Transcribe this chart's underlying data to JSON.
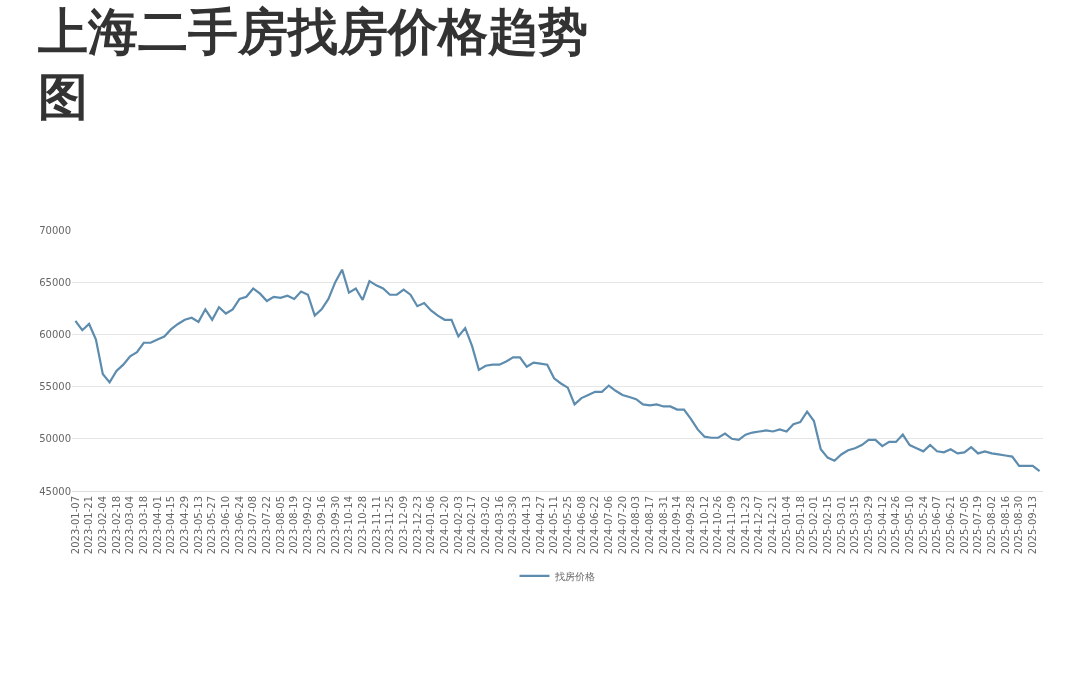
{
  "chart_data": {
    "type": "line",
    "title": "上海二手房找房价格趋势图",
    "categories": [
      "2023-01-07",
      null,
      "2023-01-21",
      null,
      "2023-02-04",
      null,
      "2023-02-18",
      null,
      "2023-03-04",
      null,
      "2023-03-18",
      null,
      "2023-04-01",
      null,
      "2023-04-15",
      null,
      "2023-04-29",
      null,
      "2023-05-13",
      null,
      "2023-05-27",
      null,
      "2023-06-10",
      null,
      "2023-06-24",
      null,
      "2023-07-08",
      null,
      "2023-07-22",
      null,
      "2023-08-05",
      null,
      "2023-08-19",
      null,
      "2023-09-02",
      null,
      "2023-09-16",
      null,
      "2023-09-30",
      null,
      "2023-10-14",
      null,
      "2023-10-28",
      null,
      "2023-11-11",
      null,
      "2023-11-25",
      null,
      "2023-12-09",
      null,
      "2023-12-23",
      null,
      "2024-01-06",
      null,
      "2024-01-20",
      null,
      "2024-02-03",
      null,
      "2024-02-17",
      null,
      "2024-03-02",
      null,
      "2024-03-16",
      null,
      "2024-03-30",
      null,
      "2024-04-13",
      null,
      "2024-04-27",
      null,
      "2024-05-11",
      null,
      "2024-05-25",
      null,
      "2024-06-08",
      null,
      "2024-06-22",
      null,
      "2024-07-06",
      null,
      "2024-07-20",
      null,
      "2024-08-03",
      null,
      "2024-08-17",
      null,
      "2024-08-31",
      null,
      "2024-09-14",
      null,
      "2024-09-28",
      null,
      "2024-10-12",
      null,
      "2024-10-26",
      null,
      "2024-11-09",
      null,
      "2024-11-23",
      null,
      "2024-12-07",
      null,
      "2024-12-21",
      null,
      "2025-01-04",
      null,
      "2025-01-18",
      null,
      "2025-02-01",
      null,
      "2025-02-15",
      null,
      "2025-03-01",
      null,
      "2025-03-15",
      null,
      "2025-03-29",
      null,
      "2025-04-12",
      null,
      "2025-04-26",
      null,
      "2025-05-10",
      null,
      "2025-05-24",
      null,
      "2025-06-07",
      null,
      "2025-06-21",
      null,
      "2025-07-05",
      null,
      "2025-07-19",
      null,
      "2025-08-02",
      null,
      "2025-08-16",
      null,
      "2025-08-30",
      null,
      "2025-09-13",
      null
    ],
    "series": [
      {
        "name": "找房价格",
        "color": "#5d8cae",
        "values": [
          61300,
          60400,
          61000,
          59500,
          56200,
          55400,
          56500,
          57100,
          57900,
          58300,
          59200,
          59200,
          59500,
          59800,
          60500,
          61000,
          61400,
          61600,
          61200,
          62400,
          61400,
          62600,
          62000,
          62400,
          63400,
          63600,
          64400,
          63900,
          63200,
          63600,
          63500,
          63700,
          63400,
          64100,
          63800,
          61800,
          62400,
          63400,
          65000,
          66200,
          64000,
          64400,
          63300,
          65100,
          64700,
          64400,
          63800,
          63800,
          64300,
          63800,
          62700,
          63000,
          62300,
          61800,
          61400,
          61400,
          59800,
          60600,
          58900,
          56600,
          57000,
          57100,
          57100,
          57400,
          57800,
          57800,
          56900,
          57300,
          57200,
          57100,
          55800,
          55300,
          54900,
          53300,
          53900,
          54200,
          54500,
          54500,
          55100,
          54600,
          54200,
          54000,
          53800,
          53300,
          53200,
          53300,
          53100,
          53100,
          52800,
          52800,
          51900,
          50900,
          50200,
          50100,
          50100,
          50500,
          50000,
          49900,
          50400,
          50600,
          50700,
          50800,
          50700,
          50900,
          50700,
          51400,
          51600,
          52600,
          51700,
          49000,
          48200,
          47900,
          48500,
          48900,
          49100,
          49400,
          49900,
          49900,
          49300,
          49700,
          49700,
          50400,
          49400,
          49100,
          48800,
          49400,
          48800,
          48700,
          49000,
          48600,
          48700,
          49200,
          48600,
          48800,
          48600,
          48500,
          48400,
          48300,
          47400,
          47400,
          47400,
          46900
        ]
      }
    ],
    "ylim": [
      45000,
      70000
    ],
    "yticks": [
      45000,
      50000,
      55000,
      60000,
      65000,
      70000
    ],
    "grid": "y",
    "legend": "bottom",
    "marker": "none",
    "line_style": "solid"
  }
}
